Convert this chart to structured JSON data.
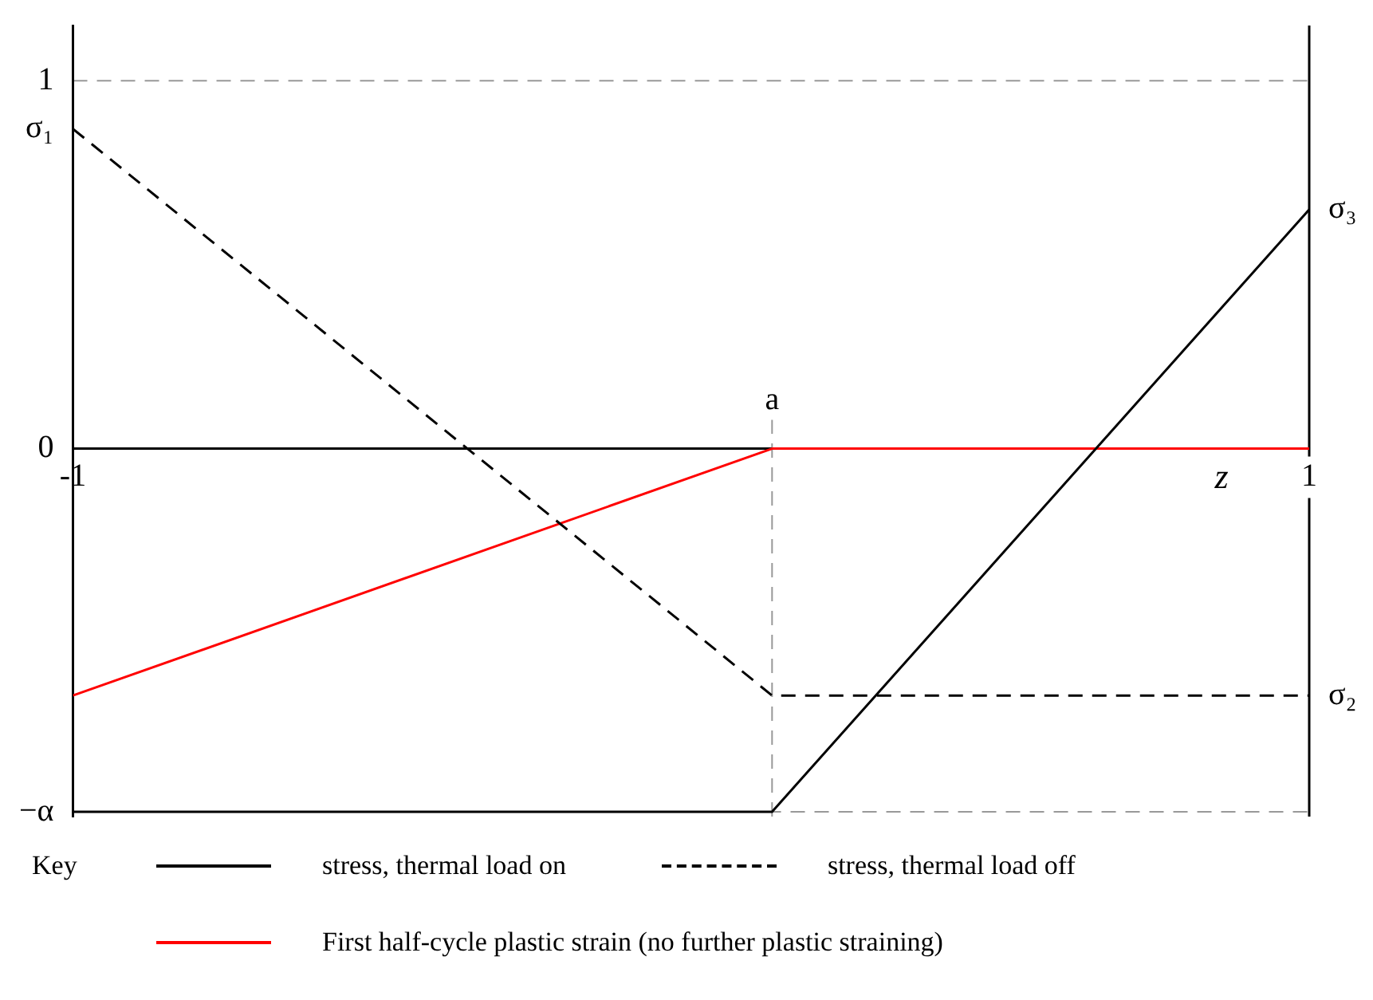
{
  "chart_data": {
    "type": "line",
    "xlabel": "z",
    "legend": "bottom",
    "legend_title": "Key",
    "marker": "none",
    "grid": false,
    "xlim": [
      -1,
      1
    ],
    "xticks": [
      -1,
      1
    ],
    "ylim": [
      -1,
      1.15
    ],
    "yticks": [
      1,
      {
        "value": 0.869,
        "label": "σ₁"
      },
      0,
      {
        "value": -0.987,
        "label": "−α"
      }
    ],
    "annotations": [
      {
        "text": "σ₃",
        "x": 1,
        "y": 0.65
      },
      {
        "text": "σ₂",
        "x": 1,
        "y": -0.671
      }
    ],
    "ref_lines": [
      {
        "axis": "y",
        "value": 1,
        "color": "#999999",
        "line_style": "dashed"
      },
      {
        "axis": "y",
        "value": -0.987,
        "color": "#999999",
        "line_style": "dashed"
      },
      {
        "axis": "x",
        "value": 0.131,
        "label": "a",
        "color": "#999999",
        "line_style": "dashed"
      },
      {
        "axis": "x",
        "value": 1,
        "color": "#000000",
        "line_style": "solid"
      }
    ],
    "series": [
      {
        "name": "stress, thermal load on",
        "color": "#000000",
        "line_style": "solid",
        "x": [
          -1,
          0.131,
          1
        ],
        "values": [
          -0.987,
          -0.987,
          0.65
        ]
      },
      {
        "name": "stress, thermal load off",
        "color": "#000000",
        "line_style": "dashed",
        "x": [
          -1,
          0.131,
          1
        ],
        "values": [
          0.869,
          -0.671,
          -0.671
        ]
      },
      {
        "name": "First half-cycle plastic strain (no further plastic straining)",
        "color": "#ff0000",
        "line_style": "solid",
        "x": [
          -1,
          0.131,
          1
        ],
        "values": [
          -0.671,
          0,
          0
        ]
      }
    ]
  }
}
